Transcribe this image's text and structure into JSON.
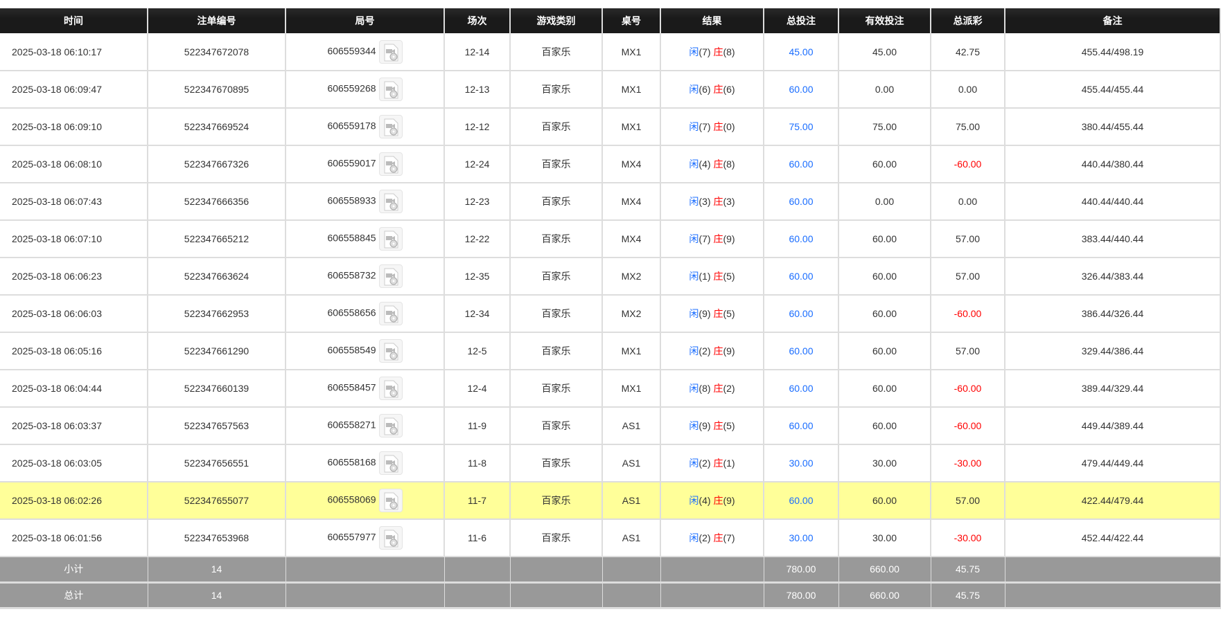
{
  "headers": [
    "时间",
    "注单编号",
    "局号",
    "场次",
    "游戏类别",
    "桌号",
    "结果",
    "总投注",
    "有效投注",
    "总派彩",
    "备注"
  ],
  "result_labels": {
    "player": "闲",
    "banker": "庄"
  },
  "colors": {
    "player": "#1a6dff",
    "banker": "#ff0000",
    "negative": "#ff0000",
    "highlight": "#ffff99",
    "header_bg": "#1a1a1a",
    "footer_bg": "#999999"
  },
  "rows": [
    {
      "time": "2025-03-18 06:10:17",
      "bet_id": "522347672078",
      "round": "606559344",
      "shoe": "12-14",
      "game": "百家乐",
      "table": "MX1",
      "player": "(7)",
      "banker": "(8)",
      "total_bet": "45.00",
      "valid_bet": "45.00",
      "payout": "42.75",
      "payout_negative": false,
      "note": "455.44/498.19"
    },
    {
      "time": "2025-03-18 06:09:47",
      "bet_id": "522347670895",
      "round": "606559268",
      "shoe": "12-13",
      "game": "百家乐",
      "table": "MX1",
      "player": "(6)",
      "banker": "(6)",
      "total_bet": "60.00",
      "valid_bet": "0.00",
      "payout": "0.00",
      "payout_negative": false,
      "note": "455.44/455.44"
    },
    {
      "time": "2025-03-18 06:09:10",
      "bet_id": "522347669524",
      "round": "606559178",
      "shoe": "12-12",
      "game": "百家乐",
      "table": "MX1",
      "player": "(7)",
      "banker": "(0)",
      "total_bet": "75.00",
      "valid_bet": "75.00",
      "payout": "75.00",
      "payout_negative": false,
      "note": "380.44/455.44"
    },
    {
      "time": "2025-03-18 06:08:10",
      "bet_id": "522347667326",
      "round": "606559017",
      "shoe": "12-24",
      "game": "百家乐",
      "table": "MX4",
      "player": "(4)",
      "banker": "(8)",
      "total_bet": "60.00",
      "valid_bet": "60.00",
      "payout": "-60.00",
      "payout_negative": true,
      "note": "440.44/380.44"
    },
    {
      "time": "2025-03-18 06:07:43",
      "bet_id": "522347666356",
      "round": "606558933",
      "shoe": "12-23",
      "game": "百家乐",
      "table": "MX4",
      "player": "(3)",
      "banker": "(3)",
      "total_bet": "60.00",
      "valid_bet": "0.00",
      "payout": "0.00",
      "payout_negative": false,
      "note": "440.44/440.44"
    },
    {
      "time": "2025-03-18 06:07:10",
      "bet_id": "522347665212",
      "round": "606558845",
      "shoe": "12-22",
      "game": "百家乐",
      "table": "MX4",
      "player": "(7)",
      "banker": "(9)",
      "total_bet": "60.00",
      "valid_bet": "60.00",
      "payout": "57.00",
      "payout_negative": false,
      "note": "383.44/440.44"
    },
    {
      "time": "2025-03-18 06:06:23",
      "bet_id": "522347663624",
      "round": "606558732",
      "shoe": "12-35",
      "game": "百家乐",
      "table": "MX2",
      "player": "(1)",
      "banker": "(5)",
      "total_bet": "60.00",
      "valid_bet": "60.00",
      "payout": "57.00",
      "payout_negative": false,
      "note": "326.44/383.44"
    },
    {
      "time": "2025-03-18 06:06:03",
      "bet_id": "522347662953",
      "round": "606558656",
      "shoe": "12-34",
      "game": "百家乐",
      "table": "MX2",
      "player": "(9)",
      "banker": "(5)",
      "total_bet": "60.00",
      "valid_bet": "60.00",
      "payout": "-60.00",
      "payout_negative": true,
      "note": "386.44/326.44"
    },
    {
      "time": "2025-03-18 06:05:16",
      "bet_id": "522347661290",
      "round": "606558549",
      "shoe": "12-5",
      "game": "百家乐",
      "table": "MX1",
      "player": "(2)",
      "banker": "(9)",
      "total_bet": "60.00",
      "valid_bet": "60.00",
      "payout": "57.00",
      "payout_negative": false,
      "note": "329.44/386.44"
    },
    {
      "time": "2025-03-18 06:04:44",
      "bet_id": "522347660139",
      "round": "606558457",
      "shoe": "12-4",
      "game": "百家乐",
      "table": "MX1",
      "player": "(8)",
      "banker": "(2)",
      "total_bet": "60.00",
      "valid_bet": "60.00",
      "payout": "-60.00",
      "payout_negative": true,
      "note": "389.44/329.44"
    },
    {
      "time": "2025-03-18 06:03:37",
      "bet_id": "522347657563",
      "round": "606558271",
      "shoe": "11-9",
      "game": "百家乐",
      "table": "AS1",
      "player": "(9)",
      "banker": "(5)",
      "total_bet": "60.00",
      "valid_bet": "60.00",
      "payout": "-60.00",
      "payout_negative": true,
      "note": "449.44/389.44"
    },
    {
      "time": "2025-03-18 06:03:05",
      "bet_id": "522347656551",
      "round": "606558168",
      "shoe": "11-8",
      "game": "百家乐",
      "table": "AS1",
      "player": "(2)",
      "banker": "(1)",
      "total_bet": "30.00",
      "valid_bet": "30.00",
      "payout": "-30.00",
      "payout_negative": true,
      "note": "479.44/449.44"
    },
    {
      "time": "2025-03-18 06:02:26",
      "bet_id": "522347655077",
      "round": "606558069",
      "shoe": "11-7",
      "game": "百家乐",
      "table": "AS1",
      "player": "(4)",
      "banker": "(9)",
      "total_bet": "60.00",
      "valid_bet": "60.00",
      "payout": "57.00",
      "payout_negative": false,
      "note": "422.44/479.44",
      "highlighted": true
    },
    {
      "time": "2025-03-18 06:01:56",
      "bet_id": "522347653968",
      "round": "606557977",
      "shoe": "11-6",
      "game": "百家乐",
      "table": "AS1",
      "player": "(2)",
      "banker": "(7)",
      "total_bet": "30.00",
      "valid_bet": "30.00",
      "payout": "-30.00",
      "payout_negative": true,
      "note": "452.44/422.44"
    }
  ],
  "summary": [
    {
      "label": "小计",
      "count": "14",
      "total_bet": "780.00",
      "valid_bet": "660.00",
      "payout": "45.75"
    },
    {
      "label": "总计",
      "count": "14",
      "total_bet": "780.00",
      "valid_bet": "660.00",
      "payout": "45.75"
    }
  ]
}
